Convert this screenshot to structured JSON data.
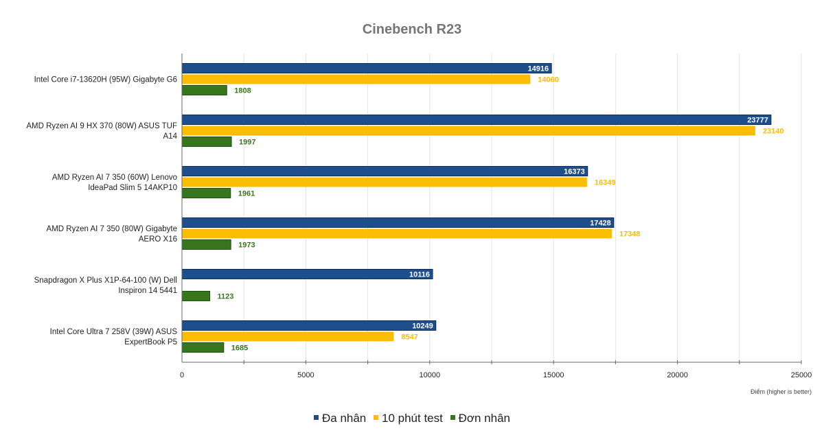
{
  "chart_data": {
    "type": "bar",
    "orientation": "horizontal",
    "title": "Cinebench R23",
    "xlabel": "Điểm (higher is better)",
    "ylabel": "",
    "xlim": [
      0,
      25000
    ],
    "x_ticks": [
      "0",
      "5000",
      "10000",
      "15000",
      "20000",
      "25000"
    ],
    "grid": true,
    "legend_position": "bottom",
    "categories": [
      "Intel Core i7-13620H (95W) Gigabyte G6",
      "AMD Ryzen AI 9 HX 370 (80W) ASUS TUF A14",
      "AMD Ryzen AI 7 350 (60W) Lenovo IdeaPad Slim 5 14AKP10",
      "AMD Ryzen AI 7 350 (80W) Gigabyte AERO X16",
      "Snapdragon X Plus X1P-64-100 (W) Dell Inspiron 14 5441",
      "Intel Core Ultra 7 258V (39W) ASUS ExpertBook P5"
    ],
    "category_lines": [
      [
        "Intel Core i7-13620H (95W) Gigabyte G6"
      ],
      [
        "AMD Ryzen AI 9 HX 370 (80W) ASUS TUF",
        "A14"
      ],
      [
        "AMD Ryzen AI 7 350 (60W) Lenovo",
        "IdeaPad Slim 5 14AKP10"
      ],
      [
        "AMD Ryzen AI 7 350 (80W) Gigabyte",
        "AERO X16"
      ],
      [
        "Snapdragon X Plus X1P-64-100 (W) Dell",
        "Inspiron 14 5441"
      ],
      [
        "Intel Core Ultra 7 258V (39W) ASUS",
        "ExpertBook P5"
      ]
    ],
    "series": [
      {
        "name": "Đa nhân",
        "color": "#1f4e8c",
        "values": [
          14916,
          23777,
          16373,
          17428,
          10116,
          10249
        ]
      },
      {
        "name": "10 phút test",
        "color": "#fbbc04",
        "values": [
          14060,
          23140,
          16349,
          17348,
          null,
          8547
        ]
      },
      {
        "name": "Đơn nhân",
        "color": "#38761d",
        "values": [
          1808,
          1997,
          1961,
          1973,
          1123,
          1685
        ]
      }
    ]
  }
}
